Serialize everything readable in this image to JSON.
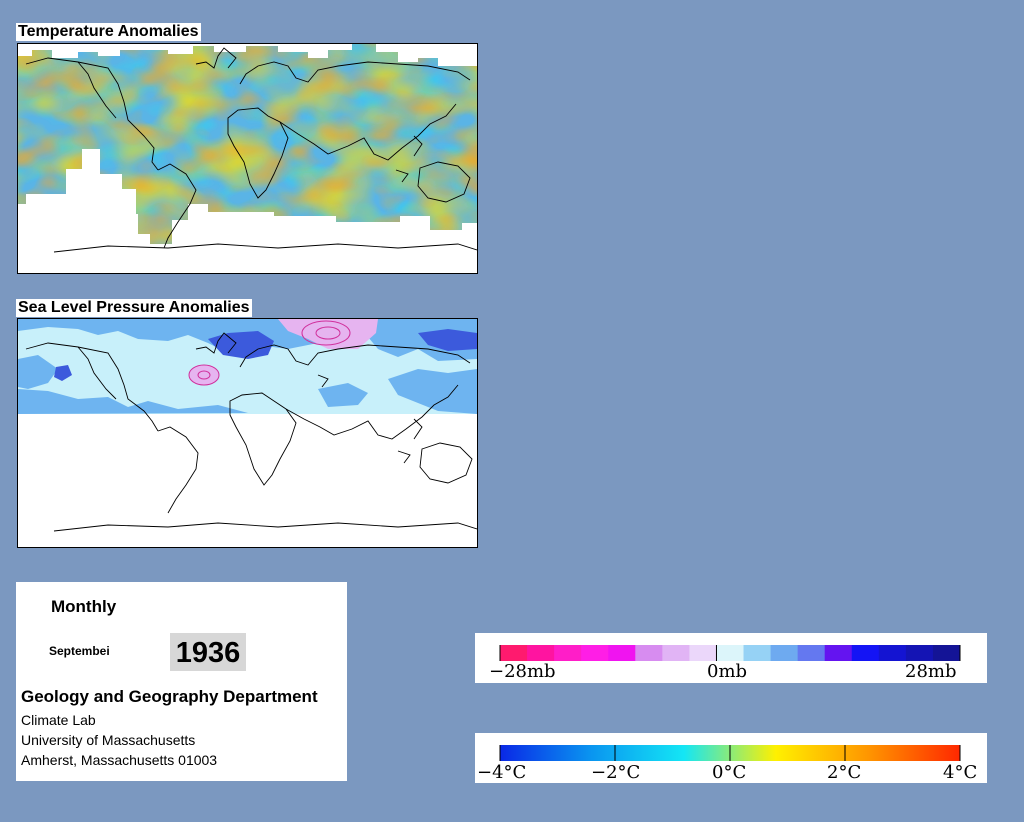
{
  "temperature_panel": {
    "title": "Temperature Anomalies"
  },
  "pressure_panel": {
    "title": "Sea Level Pressure Anomalies"
  },
  "info": {
    "period": "Monthly",
    "month": "Septembei",
    "year": "1936",
    "department": "Geology and Geography Department",
    "address_lines": [
      "Climate Lab",
      "University of Massachusetts",
      "Amherst, Massachusetts 01003"
    ]
  },
  "pressure_legend": {
    "labels": [
      "−28mb",
      "0mb",
      "28mb"
    ],
    "colors": [
      "#ff1a6e",
      "#ff14a0",
      "#ff1ec8",
      "#ff1ee6",
      "#f014f0",
      "#d78cf0",
      "#e1b4f5",
      "#ebd7fa",
      "#dcf5fa",
      "#96d2f5",
      "#6eaaf0",
      "#6478f0",
      "#6414f0",
      "#1414f5",
      "#1414d2",
      "#1414b4",
      "#141496"
    ]
  },
  "temperature_legend": {
    "labels": [
      "−4°C",
      "−2°C",
      "0°C",
      "2°C",
      "4°C"
    ],
    "gradient": [
      "#0a28e6",
      "#0a96f0",
      "#14e6f5",
      "#fff000",
      "#ff9600",
      "#ff2800"
    ]
  },
  "colors": {
    "background": "#7b98c0",
    "temp_warm": "#f5a623",
    "temp_yellow": "#f5dc14",
    "temp_cool": "#5ab4e6",
    "temp_cyan": "#32d2f0",
    "slp_light": "#c8f0fa",
    "slp_medium": "#6eb4f0",
    "slp_dark": "#3c5adc",
    "slp_pink": "#e6b4f0"
  }
}
